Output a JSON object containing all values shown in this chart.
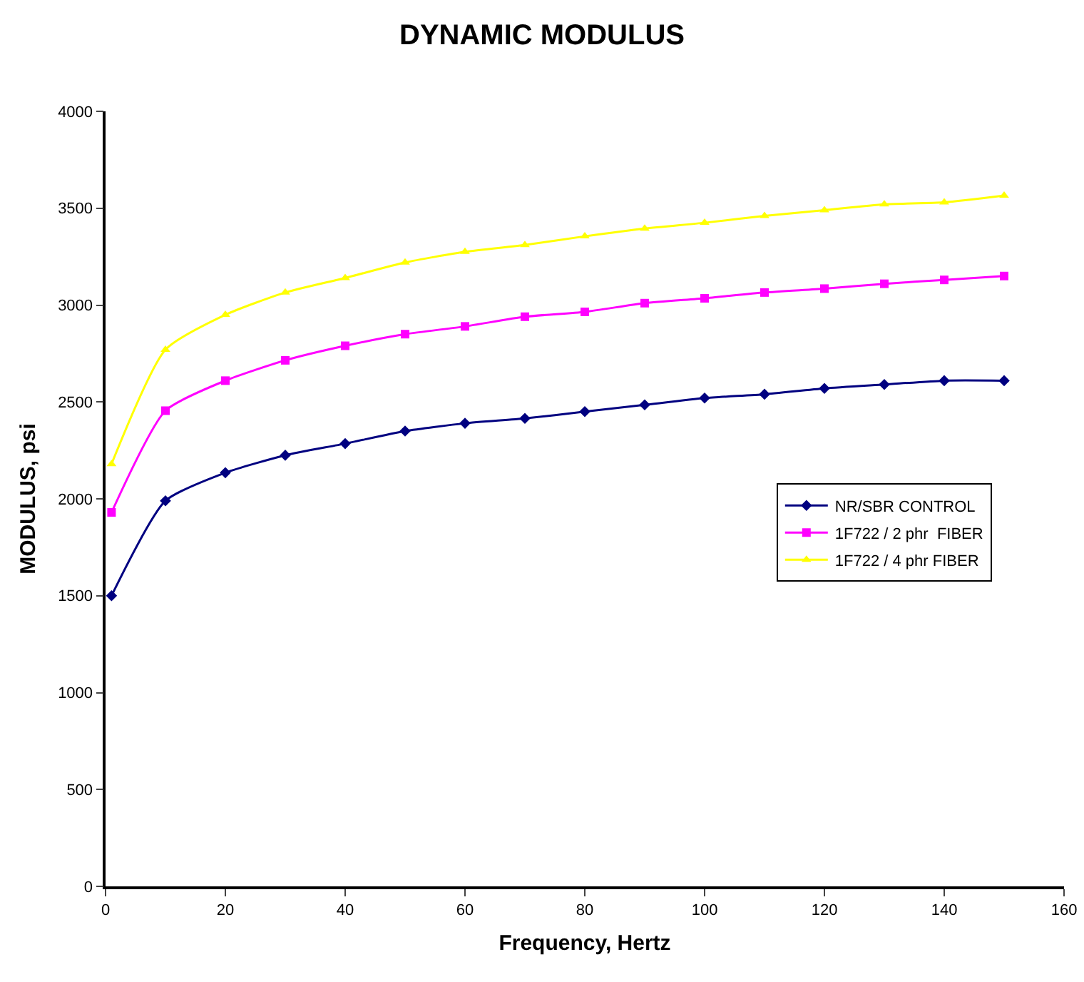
{
  "chart_data": {
    "type": "line",
    "title": "DYNAMIC MODULUS",
    "xlabel": "Frequency, Hertz",
    "ylabel": "MODULUS, psi",
    "x": [
      1,
      10,
      20,
      30,
      40,
      50,
      60,
      70,
      80,
      90,
      100,
      110,
      120,
      130,
      140,
      150
    ],
    "series": [
      {
        "name": "NR/SBR CONTROL",
        "color": "#000080",
        "marker": "diamond",
        "values": [
          1500,
          1990,
          2135,
          2225,
          2285,
          2350,
          2390,
          2415,
          2450,
          2485,
          2520,
          2540,
          2570,
          2590,
          2610,
          2610
        ]
      },
      {
        "name": "1F722 / 2 phr  FIBER",
        "color": "#ff00ff",
        "marker": "square",
        "values": [
          1930,
          2455,
          2610,
          2715,
          2790,
          2850,
          2890,
          2940,
          2965,
          3010,
          3035,
          3065,
          3085,
          3110,
          3130,
          3150
        ]
      },
      {
        "name": "1F722 / 4 phr FIBER",
        "color": "#ffff00",
        "marker": "triangle",
        "values": [
          2180,
          2770,
          2950,
          3065,
          3140,
          3220,
          3275,
          3310,
          3355,
          3395,
          3425,
          3460,
          3490,
          3520,
          3530,
          3565
        ]
      }
    ],
    "xlim": [
      0,
      160
    ],
    "xticks": [
      0,
      20,
      40,
      60,
      80,
      100,
      120,
      140,
      160
    ],
    "ylim": [
      0,
      4000
    ],
    "yticks": [
      0,
      500,
      1000,
      1500,
      2000,
      2500,
      3000,
      3500,
      4000
    ],
    "grid": false,
    "legend": "right",
    "line_style": "solid"
  }
}
